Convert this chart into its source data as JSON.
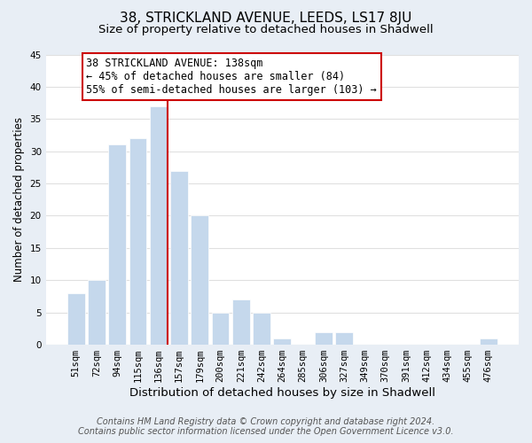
{
  "title": "38, STRICKLAND AVENUE, LEEDS, LS17 8JU",
  "subtitle": "Size of property relative to detached houses in Shadwell",
  "xlabel": "Distribution of detached houses by size in Shadwell",
  "ylabel": "Number of detached properties",
  "bar_labels": [
    "51sqm",
    "72sqm",
    "94sqm",
    "115sqm",
    "136sqm",
    "157sqm",
    "179sqm",
    "200sqm",
    "221sqm",
    "242sqm",
    "264sqm",
    "285sqm",
    "306sqm",
    "327sqm",
    "349sqm",
    "370sqm",
    "391sqm",
    "412sqm",
    "434sqm",
    "455sqm",
    "476sqm"
  ],
  "bar_values": [
    8,
    10,
    31,
    32,
    37,
    27,
    20,
    5,
    7,
    5,
    1,
    0,
    2,
    2,
    0,
    0,
    0,
    0,
    0,
    0,
    1
  ],
  "bar_color": "#c5d8ec",
  "bar_edge_color": "#ffffff",
  "highlight_line_color": "#cc0000",
  "annotation_title": "38 STRICKLAND AVENUE: 138sqm",
  "annotation_line1": "← 45% of detached houses are smaller (84)",
  "annotation_line2": "55% of semi-detached houses are larger (103) →",
  "annotation_box_color": "#ffffff",
  "annotation_box_edge": "#cc0000",
  "ylim": [
    0,
    45
  ],
  "yticks": [
    0,
    5,
    10,
    15,
    20,
    25,
    30,
    35,
    40,
    45
  ],
  "footer1": "Contains HM Land Registry data © Crown copyright and database right 2024.",
  "footer2": "Contains public sector information licensed under the Open Government Licence v3.0.",
  "plot_bg_color": "#ffffff",
  "fig_bg_color": "#e8eef5",
  "grid_color": "#e0e0e0",
  "title_fontsize": 11,
  "subtitle_fontsize": 9.5,
  "tick_fontsize": 7.5,
  "ylabel_fontsize": 8.5,
  "xlabel_fontsize": 9.5,
  "annotation_fontsize": 8.5,
  "footer_fontsize": 7
}
